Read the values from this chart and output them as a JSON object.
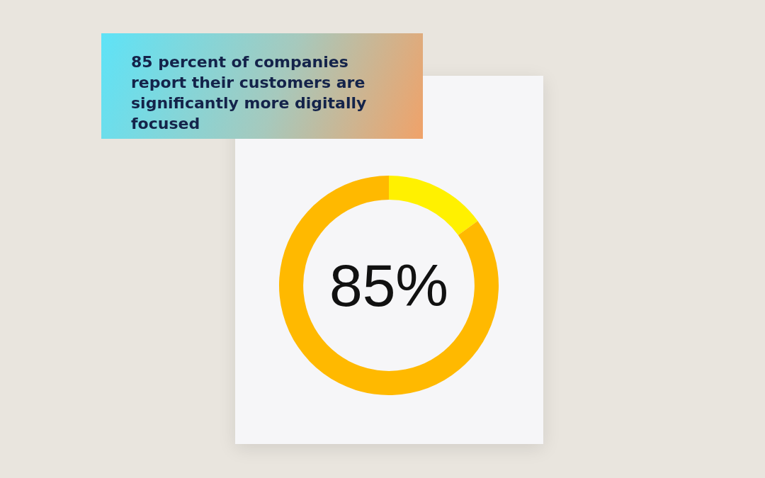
{
  "chart_data": {
    "type": "donut",
    "title": "85 percent of companies report their customers are significantly more digitally focused",
    "categories": [
      null,
      null
    ],
    "values": [
      15,
      85
    ],
    "colors": [
      "#fff100",
      "#ffb900"
    ],
    "value_labels": [
      null,
      "85%"
    ],
    "legend": false
  }
}
